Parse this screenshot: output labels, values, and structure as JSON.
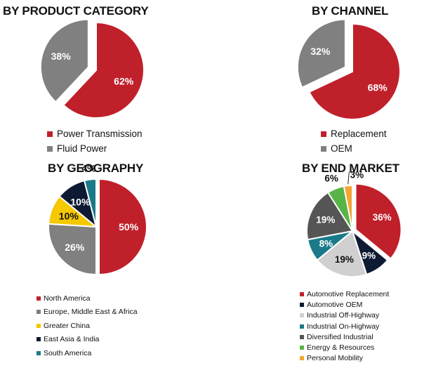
{
  "chart_data": [
    {
      "type": "pie",
      "title": "BY PRODUCT CATEGORY",
      "categories": [
        "Power Transmission",
        "Fluid Power"
      ],
      "values": [
        62,
        38
      ],
      "labels": [
        "62%",
        "38%"
      ],
      "colors": [
        "#c0202a",
        "#808080"
      ],
      "exploded": [
        false,
        true
      ]
    },
    {
      "type": "pie",
      "title": "BY CHANNEL",
      "categories": [
        "Replacement",
        "OEM"
      ],
      "values": [
        68,
        32
      ],
      "labels": [
        "68%",
        "32%"
      ],
      "colors": [
        "#c0202a",
        "#808080"
      ],
      "exploded": [
        false,
        true
      ]
    },
    {
      "type": "pie",
      "title": "BY GEOGRAPHY",
      "categories": [
        "North America",
        "Europe, Middle East & Africa",
        "Greater China",
        "East Asia & India",
        "South America"
      ],
      "values": [
        50,
        26,
        10,
        10,
        4
      ],
      "labels": [
        "50%",
        "26%",
        "10%",
        "10%",
        "4%"
      ],
      "colors": [
        "#c0202a",
        "#808080",
        "#f5c800",
        "#0e1a33",
        "#1a7a8a"
      ],
      "exploded": [
        true,
        false,
        false,
        false,
        false
      ]
    },
    {
      "type": "pie",
      "title": "BY END MARKET",
      "categories": [
        "Automotive Replacement",
        "Automotive OEM",
        "Industrial Off-Highway",
        "Industrial On-Highway",
        "Diversified Industrial",
        "Energy & Resources",
        "Personal Mobility"
      ],
      "values": [
        36,
        9,
        19,
        8,
        19,
        6,
        3
      ],
      "labels": [
        "36%",
        "9%",
        "19%",
        "8%",
        "19%",
        "6%",
        "3%"
      ],
      "colors": [
        "#c0202a",
        "#0e1a33",
        "#d0d0d0",
        "#1a7a8a",
        "#555555",
        "#58b447",
        "#f5a533"
      ],
      "exploded": [
        true,
        false,
        false,
        false,
        false,
        false,
        false
      ]
    }
  ]
}
